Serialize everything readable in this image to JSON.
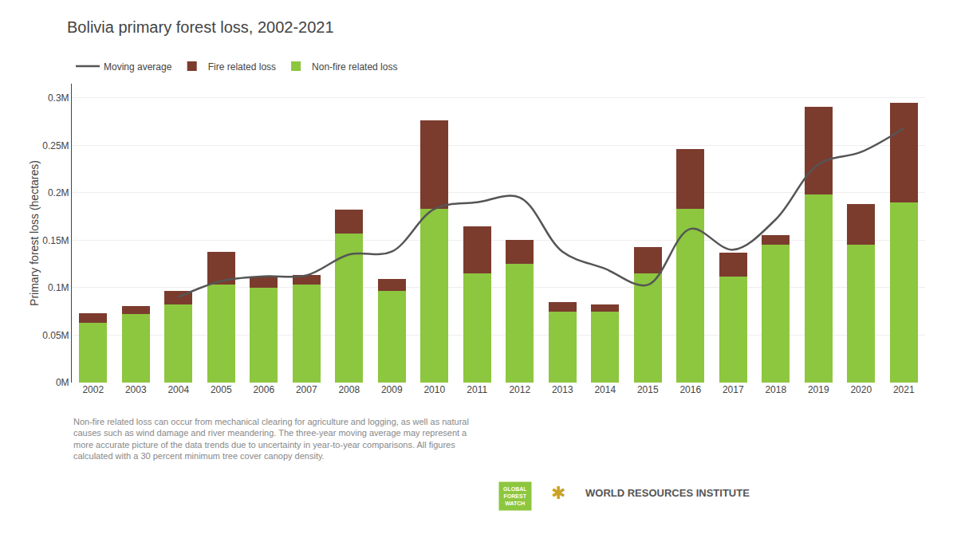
{
  "chart_data": {
    "type": "bar",
    "title": "Bolivia primary forest loss, 2002-2021",
    "y_label": "Primary forest loss (hectares)",
    "categories": [
      "2002",
      "2003",
      "2004",
      "2005",
      "2006",
      "2007",
      "2008",
      "2009",
      "2010",
      "2011",
      "2012",
      "2013",
      "2014",
      "2015",
      "2016",
      "2017",
      "2018",
      "2019",
      "2020",
      "2021"
    ],
    "series": [
      {
        "name": "Non-fire related loss",
        "color": "#8dc63f",
        "type": "bar",
        "values": [
          0.063,
          0.072,
          0.082,
          0.103,
          0.1,
          0.103,
          0.157,
          0.097,
          0.183,
          0.115,
          0.125,
          0.075,
          0.075,
          0.115,
          0.183,
          0.112,
          0.145,
          0.198,
          0.145,
          0.19
        ]
      },
      {
        "name": "Fire related loss",
        "color": "#7b3c2e",
        "type": "bar",
        "values": [
          0.01,
          0.009,
          0.015,
          0.035,
          0.012,
          0.01,
          0.025,
          0.012,
          0.093,
          0.05,
          0.025,
          0.01,
          0.007,
          0.028,
          0.063,
          0.025,
          0.01,
          0.093,
          0.043,
          0.105
        ]
      },
      {
        "name": "Moving average",
        "color": "#555555",
        "type": "line",
        "values": [
          null,
          null,
          0.09,
          0.107,
          0.112,
          0.113,
          0.135,
          0.138,
          0.183,
          0.19,
          0.195,
          0.138,
          0.12,
          0.103,
          0.162,
          0.14,
          0.172,
          0.23,
          0.243,
          0.268
        ]
      }
    ],
    "stacked": true,
    "ylim": [
      0,
      0.315
    ],
    "yticks": [
      {
        "value": 0,
        "label": "0M"
      },
      {
        "value": 0.05,
        "label": "0.05M"
      },
      {
        "value": 0.1,
        "label": "0.1M"
      },
      {
        "value": 0.15,
        "label": "0.15M"
      },
      {
        "value": 0.2,
        "label": "0.2M"
      },
      {
        "value": 0.25,
        "label": "0.25M"
      },
      {
        "value": 0.3,
        "label": "0.3M"
      }
    ],
    "grid": true,
    "legend": "top left",
    "annotations": [
      {
        "text": "Non-fire related loss can occur from mechanical clearing for agriculture and logging, as well as natural\ncauses such as wind damage and river meandering. The three-year moving average may represent a\nmore accurate picture of the data trends due to uncertainty in year-to-year comparisons. All figures\ncalculated with a 30 percent minimum tree cover canopy density."
      },
      {
        "text": "GLOBAL\nFOREST\nWATCH",
        "color": "#8dc63f"
      },
      {
        "text": "✱",
        "color": "#c9a227"
      },
      {
        "text": "WORLD RESOURCES INSTITUTE"
      }
    ]
  }
}
